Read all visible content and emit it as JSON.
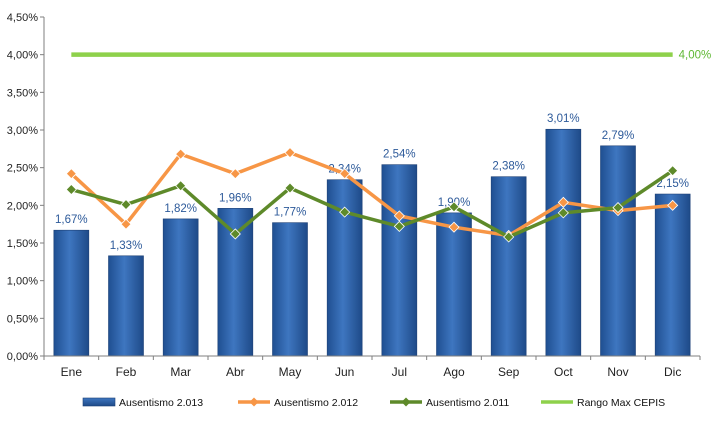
{
  "chart_data": {
    "type": "bar",
    "categories": [
      "Ene",
      "Feb",
      "Mar",
      "Abr",
      "May",
      "Jun",
      "Jul",
      "Ago",
      "Sep",
      "Oct",
      "Nov",
      "Dic"
    ],
    "ylim": [
      0,
      4.5
    ],
    "ytick_step": 0.5,
    "ytick_labels": [
      "0,00%",
      "0,50%",
      "1,00%",
      "1,50%",
      "2,00%",
      "2,50%",
      "3,00%",
      "3,50%",
      "4,00%",
      "4,50%"
    ],
    "grid": false,
    "legend_position": "bottom",
    "series": [
      {
        "name": "Ausentismo 2.013",
        "kind": "bar",
        "color": "#2e62a8",
        "values": [
          1.67,
          1.33,
          1.82,
          1.96,
          1.77,
          2.34,
          2.54,
          1.9,
          2.38,
          3.01,
          2.79,
          2.15
        ],
        "labels": [
          "1,67%",
          "1,33%",
          "1,82%",
          "1,96%",
          "1,77%",
          "2,34%",
          "2,54%",
          "1,90%",
          "2,38%",
          "3,01%",
          "2,79%",
          "2,15%"
        ]
      },
      {
        "name": "Ausentismo 2.012",
        "kind": "line",
        "color": "#f79646",
        "values": [
          2.42,
          1.75,
          2.68,
          2.42,
          2.7,
          2.42,
          1.86,
          1.71,
          1.6,
          2.04,
          1.93,
          2.0
        ]
      },
      {
        "name": "Ausentismo 2.011",
        "kind": "line",
        "color": "#5e8a2a",
        "values": [
          2.21,
          2.01,
          2.26,
          1.62,
          2.23,
          1.91,
          1.72,
          1.98,
          1.58,
          1.9,
          1.97,
          2.46
        ]
      },
      {
        "name": "Rango Max CEPIS",
        "kind": "reference-line",
        "color": "#8ed14b",
        "values": [
          4.0,
          4.0,
          4.0,
          4.0,
          4.0,
          4.0,
          4.0,
          4.0,
          4.0,
          4.0,
          4.0,
          4.0
        ],
        "label": "4,00%"
      }
    ]
  }
}
